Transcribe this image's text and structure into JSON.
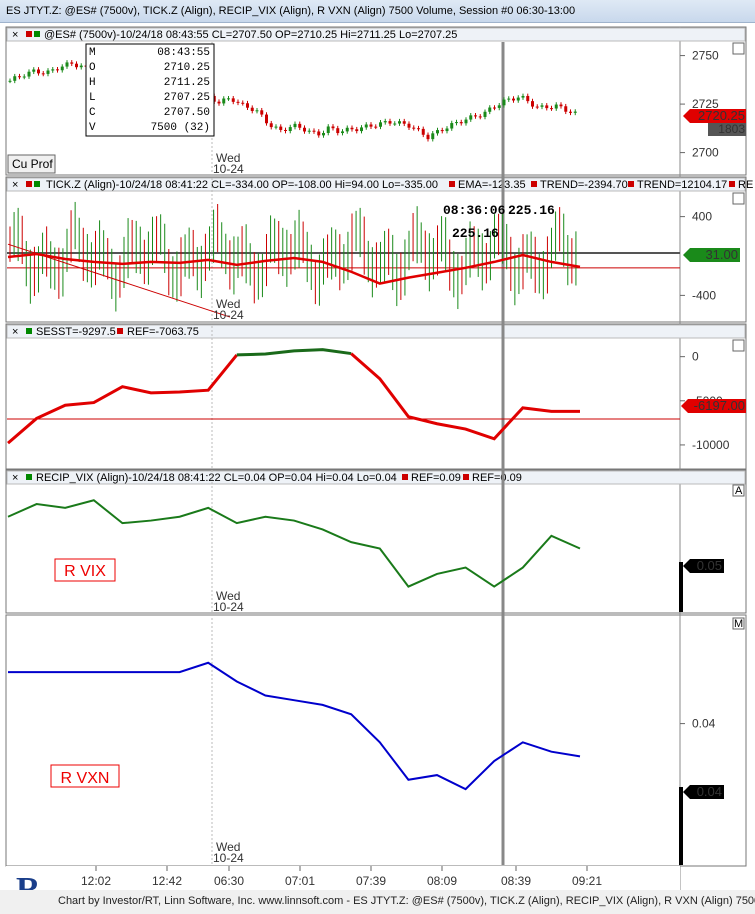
{
  "window": {
    "title": "ES JTYT.Z: @ES# (7500v), TICK.Z (Align), RECIP_VIX (Align), R VXN (Align) 7500 Volume, Session #0 06:30-13:00"
  },
  "panes": {
    "es": {
      "header": "@ES# (7500v)-10/24/18 08:43:55 CL=2707.50 OP=2710.25 Hi=2711.25 Lo=2707.25",
      "price_box": "2720.25",
      "volume_box": "1803",
      "button": "Cu Prof",
      "day_label": "Wed",
      "date_label": "10-24",
      "ohlc": [
        {
          "k": "M",
          "v": "08:43:55"
        },
        {
          "k": "O",
          "v": "2710.25"
        },
        {
          "k": "H",
          "v": "2711.25"
        },
        {
          "k": "L",
          "v": "2707.25"
        },
        {
          "k": "C",
          "v": "2707.50"
        },
        {
          "k": "V",
          "v": "7500 (32)"
        }
      ]
    },
    "tick": {
      "header_main": "TICK.Z (Align)-10/24/18 08:41:22 CL=-334.00 OP=-108.00 Hi=94.00 Lo=-335.00",
      "header_ema": "EMA=-123.35",
      "header_trend1": "TREND=-2394.70",
      "header_trend2": "TREND=12104.17",
      "header_cut": "RE",
      "value_box": "31.00",
      "annotation1": "08:36:06",
      "annotation2": "225.16",
      "annotation3": "225.16",
      "day_label": "Wed",
      "date_label": "10-24"
    },
    "sesst": {
      "header_a": "SESST=-9297.5",
      "header_b": "REF=-7063.75",
      "value_box": "-6197.00"
    },
    "vix": {
      "header_main": "RECIP_VIX (Align)-10/24/18 08:41:22 CL=0.04 OP=0.04 Hi=0.04 Lo=0.04",
      "header_ref1": "REF=0.09",
      "header_ref2": "REF=0.09",
      "label": "R VIX",
      "value_box": "0.05",
      "day_label": "Wed",
      "date_label": "10-24",
      "scale_letter": "A"
    },
    "vxn": {
      "label": "R VXN",
      "value_box": "0.04",
      "day_label": "Wed",
      "date_label": "10-24",
      "scale_letter": "M"
    }
  },
  "footer": {
    "text": "Chart by Investor/RT, Linn Software, Inc. www.linnsoft.com - ES JTYT.Z: @ES# (7500v), TICK.Z (Align), RECIP_VIX (Align), R VXN (Align) 7500"
  },
  "chart_data": [
    {
      "type": "candlestick",
      "name": "@ES# (7500v)",
      "ylim": [
        2690,
        2757
      ],
      "yticks": [
        2700,
        2725,
        2750
      ],
      "x_ticks": [
        "12:02",
        "12:42",
        "06:30",
        "07:01",
        "07:39",
        "08:09",
        "08:39",
        "09:21"
      ],
      "close_path": {
        "x": [
          0,
          4,
          8,
          12,
          16,
          20,
          24,
          28,
          32,
          36,
          40,
          44,
          48,
          52,
          56,
          60,
          64,
          68,
          72,
          76,
          80,
          84,
          88,
          92,
          96,
          100,
          104,
          106
        ],
        "y": [
          2737,
          2740,
          2742,
          2741,
          2744,
          2746,
          2744,
          2740,
          2735,
          2730,
          2734,
          2738,
          2736,
          2733,
          2731,
          2733,
          2729,
          2726,
          2728,
          2724,
          2722,
          2715,
          2711,
          2714,
          2712,
          2709,
          2713,
          2711
        ]
      },
      "continued_x": [
        106,
        112,
        118,
        124,
        130,
        136,
        142,
        148,
        154,
        160,
        166,
        172,
        178,
        184
      ],
      "continued_y": [
        2711,
        2712,
        2714,
        2716,
        2714,
        2708,
        2713,
        2717,
        2720,
        2726,
        2729,
        2723,
        2724,
        2720
      ]
    },
    {
      "type": "bar",
      "name": "TICK.Z (Align)",
      "ylim": [
        -650,
        650
      ],
      "yticks": [
        -400,
        400
      ],
      "ema": {
        "x": [
          0,
          10,
          20,
          30,
          40,
          50,
          60,
          70,
          80,
          90,
          100,
          110,
          120,
          130,
          140,
          150,
          160,
          170,
          180,
          190,
          200
        ],
        "y": [
          -10,
          20,
          -30,
          -60,
          -80,
          -60,
          -70,
          -40,
          -90,
          -50,
          -20,
          -60,
          -160,
          -280,
          -220,
          -170,
          -120,
          -60,
          10,
          -60,
          -110
        ]
      },
      "trend_line": {
        "x": [
          0,
          200
        ],
        "y": [
          120,
          -620
        ]
      },
      "ref_lines": [
        30,
        -120
      ]
    },
    {
      "type": "line",
      "name": "SESST",
      "ylim": [
        -12500,
        2000
      ],
      "yticks": [
        0,
        -5000,
        -10000
      ],
      "ref": -7063.75,
      "x": [
        0,
        10,
        20,
        30,
        40,
        50,
        60,
        70,
        80,
        90,
        100,
        110,
        120,
        130,
        140,
        150,
        160,
        170,
        180,
        190,
        200
      ],
      "y": [
        -9800,
        -7000,
        -5500,
        -5200,
        -3400,
        -4100,
        -4000,
        -3800,
        200,
        300,
        650,
        800,
        350,
        -2500,
        -6800,
        -7600,
        -8200,
        -9300,
        -5800,
        -6200,
        -6197
      ]
    },
    {
      "type": "line",
      "name": "RECIP_VIX (Align)",
      "ylim": [
        0.0,
        0.1
      ],
      "x": [
        0,
        10,
        20,
        30,
        40,
        50,
        60,
        70,
        80,
        90,
        100,
        110,
        120,
        130,
        140,
        150,
        160,
        170,
        180,
        190,
        200
      ],
      "y": [
        0.075,
        0.085,
        0.082,
        0.088,
        0.07,
        0.072,
        0.075,
        0.082,
        0.07,
        0.075,
        0.072,
        0.065,
        0.055,
        0.05,
        0.02,
        0.03,
        0.035,
        0.02,
        0.035,
        0.06,
        0.05
      ]
    },
    {
      "type": "line",
      "name": "R VXN",
      "ylim": [
        0.025,
        0.05
      ],
      "yticks": [
        0.04
      ],
      "x": [
        0,
        10,
        20,
        30,
        40,
        50,
        60,
        70,
        80,
        90,
        100,
        110,
        120,
        130,
        140,
        150,
        160,
        170,
        180,
        190,
        200
      ],
      "y": [
        0.0455,
        0.0455,
        0.0455,
        0.0455,
        0.0455,
        0.0455,
        0.0455,
        0.0465,
        0.0445,
        0.043,
        0.0425,
        0.042,
        0.041,
        0.038,
        0.034,
        0.0345,
        0.033,
        0.036,
        0.038,
        0.037,
        0.0365
      ]
    }
  ]
}
